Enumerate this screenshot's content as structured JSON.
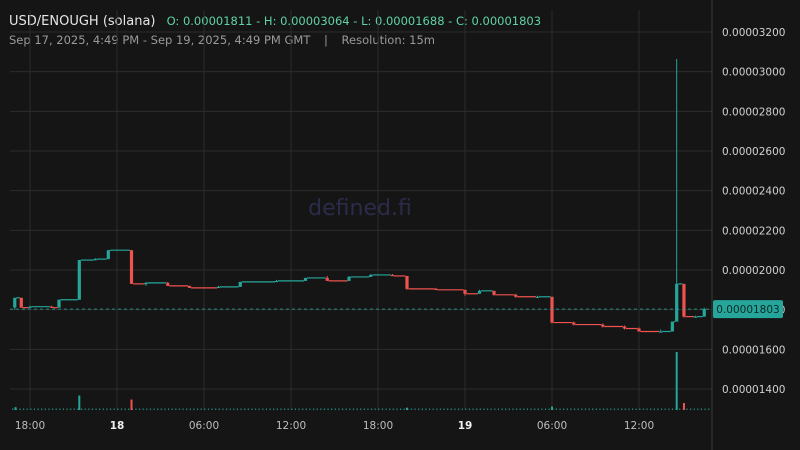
{
  "header": {
    "pair": "USD/ENOUGH (solana)",
    "ohlc": "O: 0.00001811 - H: 0.00003064 - L: 0.00001688 - C: 0.00001803",
    "range": "Sep 17, 2025, 4:49 PM - Sep 19, 2025, 4:49 PM GMT",
    "separator": "|",
    "resolution": "Resolution: 15m"
  },
  "watermark": "defined.fi",
  "colors": {
    "up": "#26a69a",
    "down": "#ef5350",
    "last_price_badge": "#26a69a",
    "background": "#151515"
  },
  "chart_data": {
    "type": "candlestick",
    "title": "USD/ENOUGH (solana)",
    "resolution": "15m",
    "x_ticks": [
      "18:00",
      "18",
      "06:00",
      "12:00",
      "18:00",
      "19",
      "06:00",
      "12:00"
    ],
    "x_tick_hours": [
      18,
      24,
      30,
      36,
      42,
      48,
      54,
      60
    ],
    "bold_ticks": [
      "18",
      "19"
    ],
    "y_ticks": [
      "0.00001400",
      "0.00001600",
      "0.00001800",
      "0.00002000",
      "0.00002200",
      "0.00002400",
      "0.00002600",
      "0.00002800",
      "0.00003000",
      "0.00003200"
    ],
    "ylim": [
      1.29e-05,
      3.31e-05
    ],
    "grid": true,
    "last_price": "0.00001803",
    "volume_note": "volume bars at bottom",
    "candles": [
      {
        "h": 16.95,
        "o": 1.811,
        "hi": 1.86,
        "lo": 1.8,
        "c": 1.86
      },
      {
        "h": 17.4,
        "o": 1.86,
        "hi": 1.86,
        "lo": 1.81,
        "c": 1.81
      },
      {
        "h": 18.0,
        "o": 1.81,
        "hi": 1.82,
        "lo": 1.81,
        "c": 1.815
      },
      {
        "h": 19.5,
        "o": 1.815,
        "hi": 1.82,
        "lo": 1.81,
        "c": 1.81
      },
      {
        "h": 20.0,
        "o": 1.81,
        "hi": 1.85,
        "lo": 1.81,
        "c": 1.85
      },
      {
        "h": 21.4,
        "o": 1.85,
        "hi": 2.05,
        "lo": 1.85,
        "c": 2.05
      },
      {
        "h": 22.5,
        "o": 2.05,
        "hi": 2.06,
        "lo": 2.05,
        "c": 2.055
      },
      {
        "h": 23.4,
        "o": 2.055,
        "hi": 2.1,
        "lo": 2.055,
        "c": 2.1
      },
      {
        "h": 25.0,
        "o": 2.1,
        "hi": 2.1,
        "lo": 1.93,
        "c": 1.93
      },
      {
        "h": 26.0,
        "o": 1.93,
        "hi": 1.94,
        "lo": 1.92,
        "c": 1.935
      },
      {
        "h": 27.5,
        "o": 1.935,
        "hi": 1.94,
        "lo": 1.92,
        "c": 1.92
      },
      {
        "h": 29.0,
        "o": 1.92,
        "hi": 1.92,
        "lo": 1.91,
        "c": 1.91
      },
      {
        "h": 31.0,
        "o": 1.91,
        "hi": 1.92,
        "lo": 1.91,
        "c": 1.915
      },
      {
        "h": 32.5,
        "o": 1.915,
        "hi": 1.94,
        "lo": 1.915,
        "c": 1.94
      },
      {
        "h": 35.0,
        "o": 1.94,
        "hi": 1.95,
        "lo": 1.94,
        "c": 1.945
      },
      {
        "h": 37.0,
        "o": 1.945,
        "hi": 1.96,
        "lo": 1.945,
        "c": 1.96
      },
      {
        "h": 38.5,
        "o": 1.96,
        "hi": 1.97,
        "lo": 1.95,
        "c": 1.945
      },
      {
        "h": 40.0,
        "o": 1.945,
        "hi": 1.97,
        "lo": 1.945,
        "c": 1.965
      },
      {
        "h": 41.5,
        "o": 1.965,
        "hi": 1.98,
        "lo": 1.965,
        "c": 1.975
      },
      {
        "h": 43.0,
        "o": 1.975,
        "hi": 1.98,
        "lo": 1.97,
        "c": 1.97
      },
      {
        "h": 44.0,
        "o": 1.97,
        "hi": 1.97,
        "lo": 1.9,
        "c": 1.905
      },
      {
        "h": 46.0,
        "o": 1.905,
        "hi": 1.91,
        "lo": 1.9,
        "c": 1.9
      },
      {
        "h": 48.0,
        "o": 1.9,
        "hi": 1.9,
        "lo": 1.87,
        "c": 1.88
      },
      {
        "h": 49.0,
        "o": 1.88,
        "hi": 1.9,
        "lo": 1.88,
        "c": 1.895
      },
      {
        "h": 50.0,
        "o": 1.895,
        "hi": 1.895,
        "lo": 1.87,
        "c": 1.875
      },
      {
        "h": 51.5,
        "o": 1.875,
        "hi": 1.88,
        "lo": 1.86,
        "c": 1.865
      },
      {
        "h": 53.0,
        "o": 1.865,
        "hi": 1.87,
        "lo": 1.86,
        "c": 1.865
      },
      {
        "h": 54.0,
        "o": 1.865,
        "hi": 1.865,
        "lo": 1.73,
        "c": 1.735
      },
      {
        "h": 55.5,
        "o": 1.735,
        "hi": 1.74,
        "lo": 1.72,
        "c": 1.725
      },
      {
        "h": 57.5,
        "o": 1.725,
        "hi": 1.73,
        "lo": 1.71,
        "c": 1.715
      },
      {
        "h": 59.0,
        "o": 1.715,
        "hi": 1.72,
        "lo": 1.7,
        "c": 1.705
      },
      {
        "h": 60.0,
        "o": 1.705,
        "hi": 1.71,
        "lo": 1.69,
        "c": 1.69
      },
      {
        "h": 61.5,
        "o": 1.69,
        "hi": 1.7,
        "lo": 1.69,
        "c": 1.69
      },
      {
        "h": 62.3,
        "o": 1.69,
        "hi": 1.74,
        "lo": 1.69,
        "c": 1.74
      },
      {
        "h": 62.6,
        "o": 1.74,
        "hi": 3.064,
        "lo": 1.74,
        "c": 1.93
      },
      {
        "h": 63.1,
        "o": 1.93,
        "hi": 1.93,
        "lo": 1.76,
        "c": 1.765
      },
      {
        "h": 63.9,
        "o": 1.765,
        "hi": 1.77,
        "lo": 1.76,
        "c": 1.765
      },
      {
        "h": 64.5,
        "o": 1.765,
        "hi": 1.81,
        "lo": 1.765,
        "c": 1.803
      }
    ],
    "volume": [
      {
        "h": 17.0,
        "v": 0.05
      },
      {
        "h": 21.4,
        "v": 0.25
      },
      {
        "h": 25.0,
        "v": 0.18
      },
      {
        "h": 44.0,
        "v": 0.04
      },
      {
        "h": 54.0,
        "v": 0.06
      },
      {
        "h": 62.6,
        "v": 1.0
      },
      {
        "h": 63.1,
        "v": 0.12
      }
    ]
  }
}
